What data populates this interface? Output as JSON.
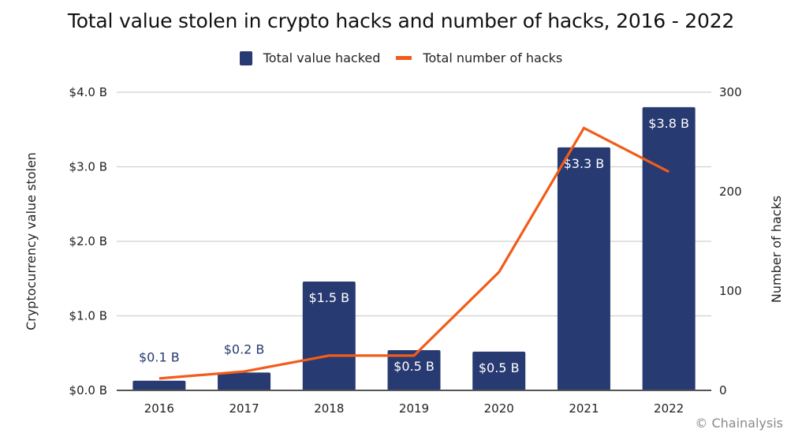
{
  "chart_data": {
    "type": "bar+line",
    "title": "Total value stolen in crypto hacks and number of hacks, 2016 - 2022",
    "categories": [
      "2016",
      "2017",
      "2018",
      "2019",
      "2020",
      "2021",
      "2022"
    ],
    "series": [
      {
        "name": "Total value hacked",
        "type": "bar",
        "axis": "left",
        "color": "#283a72",
        "values": [
          0.13,
          0.24,
          1.46,
          0.54,
          0.52,
          3.26,
          3.8
        ],
        "labels": [
          "$0.1 B",
          "$0.2 B",
          "$1.5 B",
          "$0.5 B",
          "$0.5 B",
          "$3.3 B",
          "$3.8 B"
        ]
      },
      {
        "name": "Total number of hacks",
        "type": "line",
        "axis": "right",
        "color": "#f25c19",
        "values": [
          12,
          19,
          35,
          35,
          119,
          264,
          220
        ]
      }
    ],
    "xlabel": "",
    "ylabel": "Cryptocurrency value stolen",
    "ylabel_right": "Number of hacks",
    "ylim": [
      0,
      4.0
    ],
    "ylim_right": [
      0,
      300
    ],
    "yticks": [
      "$0.0 B",
      "$1.0 B",
      "$2.0 B",
      "$3.0 B",
      "$4.0 B"
    ],
    "yticks_right": [
      "0",
      "100",
      "200",
      "300"
    ],
    "grid": true,
    "legend_position": "top"
  },
  "header": {
    "title": "Total value stolen in crypto hacks and number of hacks, 2016 - 2022"
  },
  "legend": {
    "bar_label": "Total value hacked",
    "line_label": "Total number of hacks"
  },
  "axes": {
    "left_title": "Cryptocurrency value stolen",
    "right_title": "Number of hacks"
  },
  "credit": "© Chainalysis"
}
